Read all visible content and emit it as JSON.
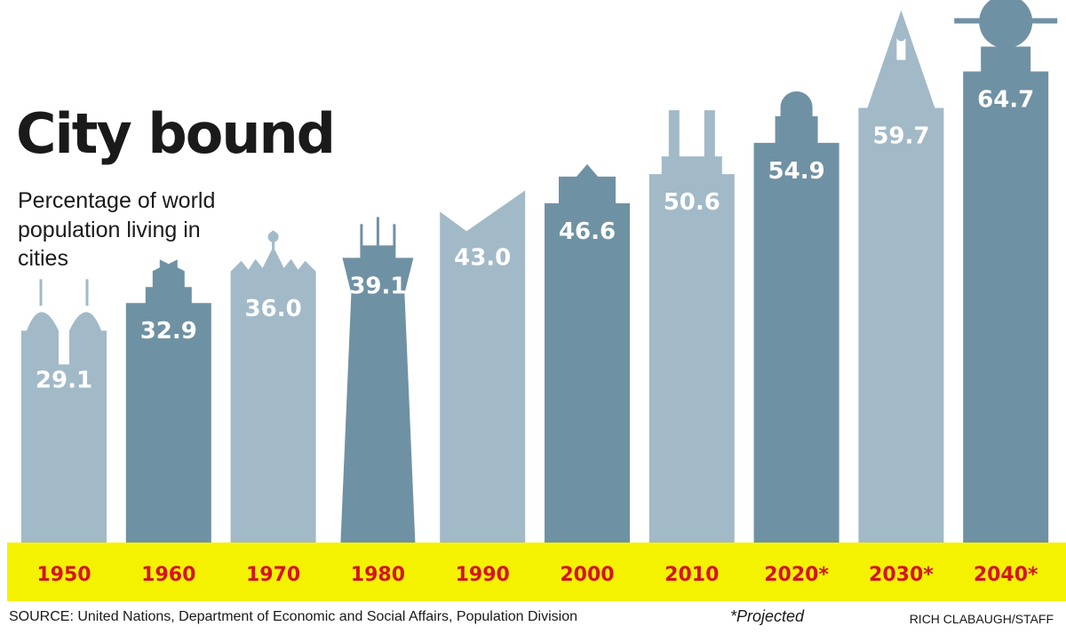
{
  "title": "City bound",
  "subtitle": "Percentage of world population living in cities",
  "footer": {
    "source": "SOURCE: United Nations, Department of Economic and Social Affairs, Population Division",
    "note": "*Projected",
    "credit": "RICH CLABAUGH/STAFF"
  },
  "colors": {
    "light_bar": "#a2b9c8",
    "dark_bar": "#6f91a4",
    "base_band": "#f5f200",
    "year_text": "#d5141e",
    "value_text": "#ffffff"
  },
  "chart_data": {
    "type": "bar",
    "title": "City bound",
    "subtitle": "Percentage of world population living in cities",
    "categories": [
      "1950",
      "1960",
      "1970",
      "1980",
      "1990",
      "2000",
      "2010",
      "2020*",
      "2030*",
      "2040*"
    ],
    "values": [
      29.1,
      32.9,
      36.0,
      39.1,
      43.0,
      46.6,
      50.6,
      54.9,
      59.7,
      64.7
    ],
    "value_labels": [
      "29.1",
      "32.9",
      "36.0",
      "39.1",
      "43.0",
      "46.6",
      "50.6",
      "54.9",
      "59.7",
      "64.7"
    ],
    "shades": [
      "light",
      "dark",
      "light",
      "dark",
      "light",
      "dark",
      "light",
      "dark",
      "light",
      "dark"
    ],
    "styles": [
      "twin-domes",
      "crown",
      "spiky-crown",
      "spire-tower",
      "slanted-roof",
      "peaked-roof",
      "chimneys",
      "dome",
      "obelisk",
      "orb-spire"
    ],
    "xlabel": "",
    "ylabel": "",
    "ylim": [
      0,
      70
    ],
    "grid": false,
    "legend": "none",
    "annotations": [
      "*Projected"
    ]
  }
}
